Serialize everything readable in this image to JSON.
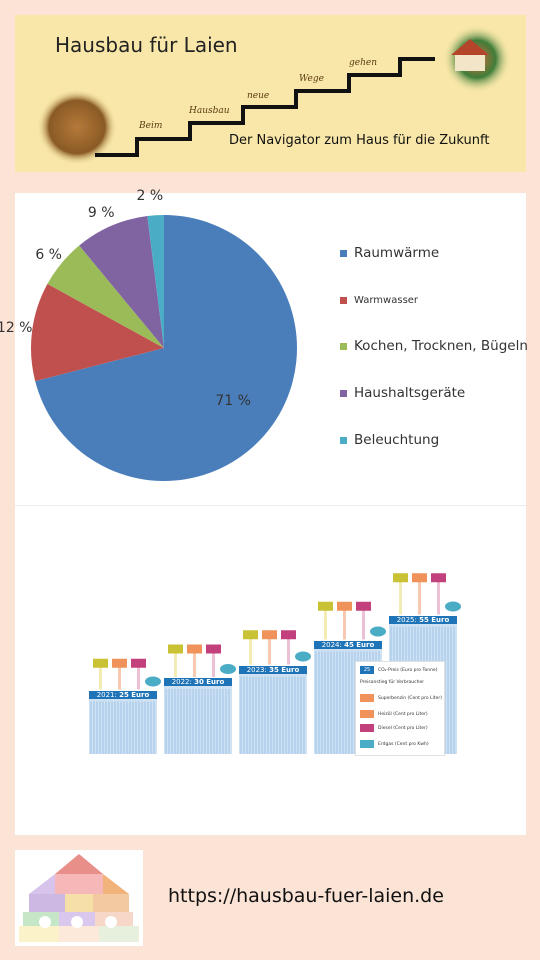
{
  "banner": {
    "title": "Hausbau für Laien",
    "subtitle": "Der Navigator zum Haus für die Zukunft",
    "steps": [
      "Beim",
      "Hausbau",
      "neue",
      "Wege",
      "gehen"
    ]
  },
  "chart_data": [
    {
      "type": "pie",
      "title": "",
      "slices": [
        {
          "label": "Raumwärme",
          "value": 71,
          "value_label": "71 %",
          "color": "#4a7ebb"
        },
        {
          "label": "Warmwasser",
          "value": 12,
          "value_label": "12 %",
          "color": "#c0504d"
        },
        {
          "label": "Kochen, Trocknen, Bügeln",
          "value": 6,
          "value_label": "6 %",
          "color": "#9bbb59"
        },
        {
          "label": "Haushaltsgeräte",
          "value": 9,
          "value_label": "9 %",
          "color": "#8064a2"
        },
        {
          "label": "Beleuchtung",
          "value": 2,
          "value_label": "2 %",
          "color": "#4bacc6"
        }
      ],
      "legend_position": "right"
    },
    {
      "type": "bar",
      "title": "",
      "categories": [
        "2021",
        "2022",
        "2023",
        "2024",
        "2025"
      ],
      "values": [
        25,
        30,
        35,
        45,
        55
      ],
      "bar_labels": [
        "2021: 25 Euro",
        "2022: 30 Euro",
        "2023: 35 Euro",
        "2024: 45 Euro",
        "2025: 55 Euro"
      ],
      "year_labels": [
        "2021:",
        "2022:",
        "2023:",
        "2024:",
        "2025:"
      ],
      "amount_labels": [
        "25 Euro",
        "30 Euro",
        "35 Euro",
        "45 Euro",
        "55 Euro"
      ],
      "ylim": [
        0,
        60
      ],
      "colors": {
        "bar": "#cfe2f3",
        "stripe": "#9cc3e5",
        "caption": "#1f73b7",
        "badge_yellow": "#c9c234",
        "badge_orange": "#f0935a",
        "badge_pink": "#c2417c",
        "cloud": "#4bacc6"
      },
      "legend": {
        "items": [
          {
            "badge": "25",
            "text": "CO₂-Preis (Euro pro Tonne)",
            "color": "#1f73b7"
          },
          {
            "badge": "",
            "text": "Preisanstieg für Verbraucher",
            "color": ""
          },
          {
            "badge": "",
            "text": "Superbenzin (Cent pro Liter)",
            "color": "#f0935a"
          },
          {
            "badge": "",
            "text": "Heizöl (Cent pro Liter)",
            "color": "#f0935a"
          },
          {
            "badge": "",
            "text": "Diesel (Cent pro Liter)",
            "color": "#c2417c"
          },
          {
            "badge": "",
            "text": "Erdgas (Cent pro Kwh)",
            "color": "#4bacc6"
          }
        ]
      }
    }
  ],
  "footer": {
    "url": "https://hausbau-fuer-laien.de"
  }
}
